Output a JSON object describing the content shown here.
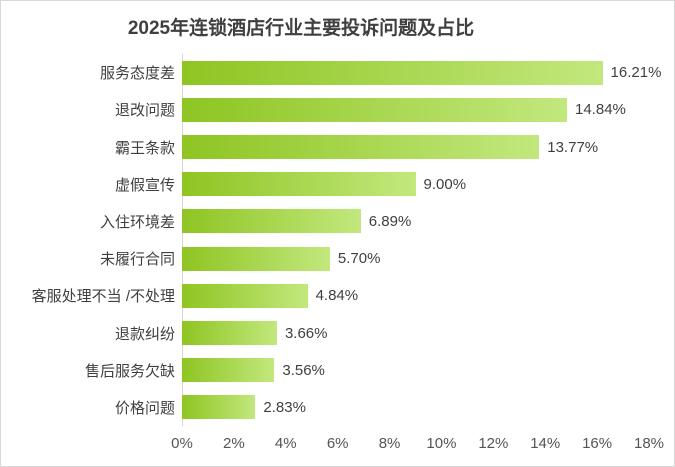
{
  "frame": {
    "background": "#ffffff",
    "border_color": "#d9d9d9"
  },
  "chart_data": {
    "type": "bar",
    "orientation": "horizontal",
    "title": "2025年连锁酒店行业主要投诉问题及占比",
    "categories": [
      "服务态度差",
      "退改问题",
      "霸王条款",
      "虚假宣传",
      "入住环境差",
      "未履行合同",
      "客服处理不当 /不处理",
      "退款纠纷",
      "售后服务欠缺",
      "价格问题"
    ],
    "values": [
      16.21,
      14.84,
      13.77,
      9.0,
      6.89,
      5.7,
      4.84,
      3.66,
      3.56,
      2.83
    ],
    "value_labels": [
      "16.21%",
      "14.84%",
      "13.77%",
      "9.00%",
      "6.89%",
      "5.70%",
      "4.84%",
      "3.66%",
      "3.56%",
      "2.83%"
    ],
    "xlabel": "",
    "ylabel": "",
    "xlim": [
      0,
      18
    ],
    "x_ticks": [
      "0%",
      "2%",
      "4%",
      "6%",
      "8%",
      "10%",
      "12%",
      "14%",
      "16%",
      "18%"
    ],
    "x_tick_values": [
      0,
      2,
      4,
      6,
      8,
      10,
      12,
      14,
      16,
      18
    ],
    "grid": false,
    "legend": false,
    "bar_gradient_start": "#8ec522",
    "bar_gradient_end": "#c2e87d",
    "axis_line_color": "#d9d9d9",
    "title_color": "#3f3f3f",
    "label_color": "#404040",
    "tick_label_color": "#555555"
  }
}
